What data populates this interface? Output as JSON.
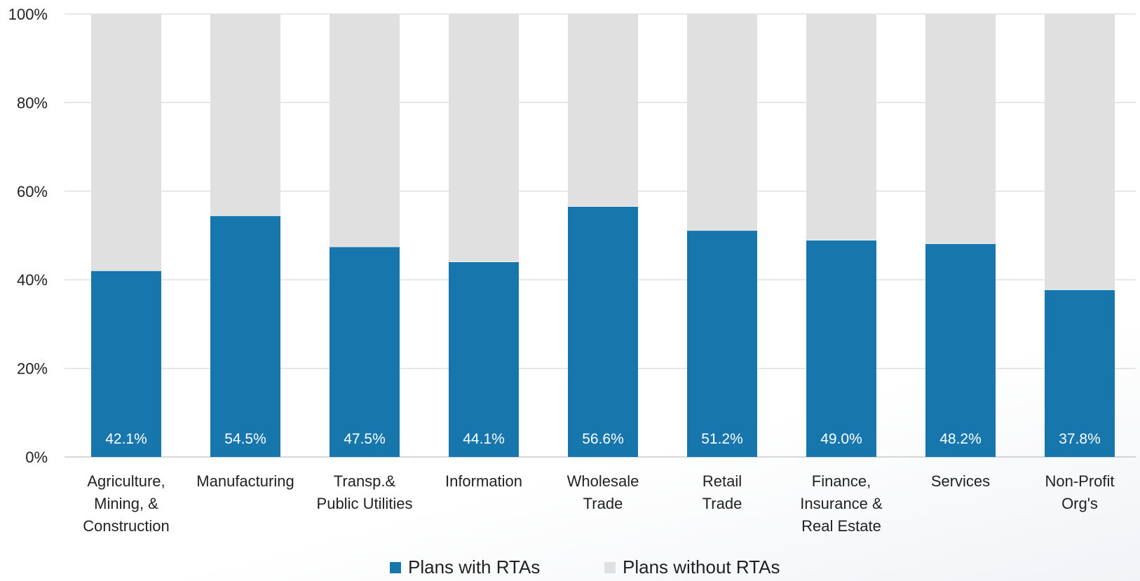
{
  "chart_data": {
    "type": "bar",
    "stacked": true,
    "percent": true,
    "categories": [
      [
        "Agriculture,",
        "Mining, &",
        "Construction"
      ],
      [
        "Manufacturing"
      ],
      [
        "Transp.&",
        "Public Utilities"
      ],
      [
        "Information"
      ],
      [
        "Wholesale",
        "Trade"
      ],
      [
        "Retail",
        "Trade"
      ],
      [
        "Finance,",
        "Insurance &",
        "Real Estate"
      ],
      [
        "Services"
      ],
      [
        "Non-Profit",
        "Org's"
      ]
    ],
    "series": [
      {
        "name": "Plans with RTAs",
        "color": "#1777ad",
        "values": [
          42.1,
          54.5,
          47.5,
          44.1,
          56.6,
          51.2,
          49.0,
          48.2,
          37.8
        ],
        "labels": [
          "42.1%",
          "54.5%",
          "47.5%",
          "44.1%",
          "56.6%",
          "51.2%",
          "49.0%",
          "48.2%",
          "37.8%"
        ]
      },
      {
        "name": "Plans without RTAs",
        "color": "#e0e0e0",
        "values": [
          57.9,
          45.5,
          52.5,
          55.9,
          43.4,
          48.8,
          51.0,
          51.8,
          62.2
        ]
      }
    ],
    "ylim": [
      0,
      100
    ],
    "yticks": [
      "0%",
      "20%",
      "40%",
      "60%",
      "80%",
      "100%"
    ],
    "grid": true,
    "legend_position": "bottom"
  }
}
